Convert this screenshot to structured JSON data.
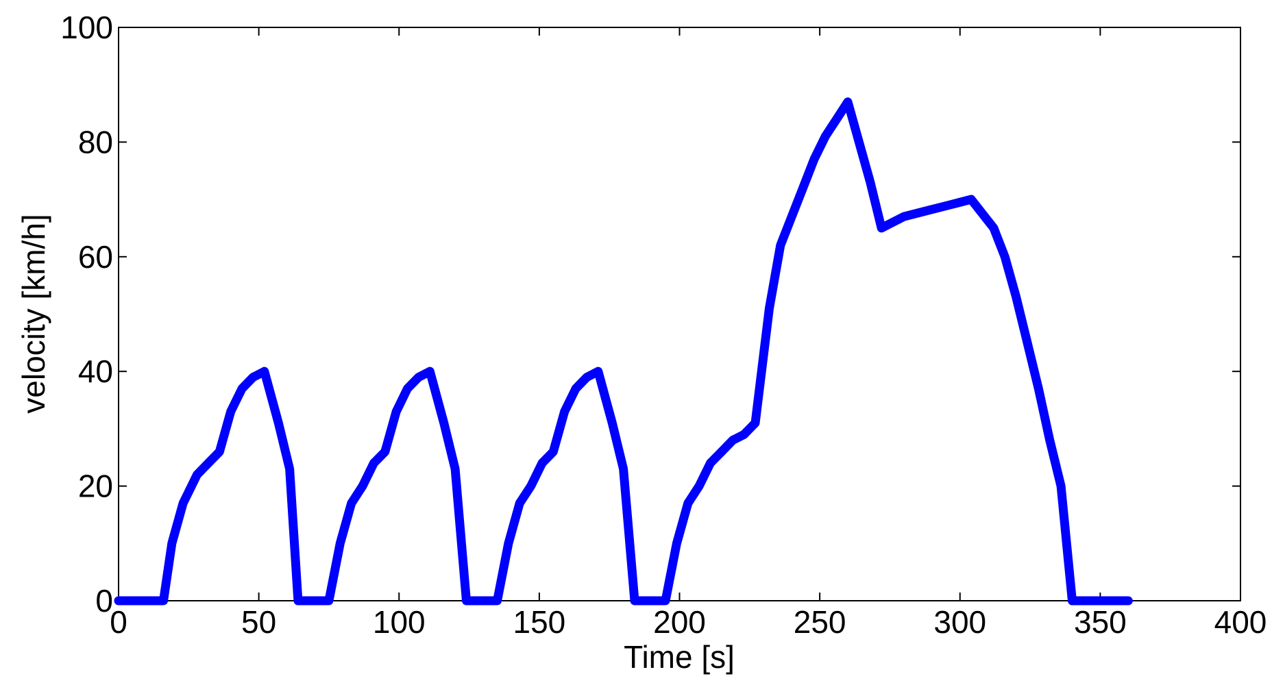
{
  "chart_data": {
    "type": "line",
    "title": "",
    "xlabel": "Time [s]",
    "ylabel": "velocity [km/h]",
    "xlim": [
      0,
      400
    ],
    "ylim": [
      0,
      100
    ],
    "xticks": [
      "0",
      "50",
      "100",
      "150",
      "200",
      "250",
      "300",
      "350",
      "400"
    ],
    "yticks": [
      "0",
      "20",
      "40",
      "60",
      "80",
      "100"
    ],
    "grid": false,
    "legend": "none",
    "series": [
      {
        "color": "#0000ff",
        "x": [
          0,
          16,
          19,
          23,
          28,
          32,
          36,
          40,
          44,
          48,
          52,
          57,
          61,
          64,
          75,
          79,
          83,
          87,
          91,
          95,
          99,
          103,
          107,
          111,
          116,
          120,
          124,
          135,
          139,
          143,
          147,
          151,
          155,
          159,
          163,
          167,
          171,
          176,
          180,
          184,
          195,
          199,
          203,
          207,
          211,
          215,
          219,
          223,
          227,
          232,
          236,
          240,
          244,
          248,
          252,
          256,
          260,
          264,
          268,
          272,
          276,
          280,
          288,
          296,
          304,
          312,
          316,
          320,
          324,
          328,
          332,
          336,
          340,
          344,
          360
        ],
        "y": [
          0,
          0,
          10,
          17,
          22,
          24,
          26,
          33,
          37,
          39,
          40,
          31,
          23,
          0,
          0,
          10,
          17,
          20,
          24,
          26,
          33,
          37,
          39,
          40,
          31,
          23,
          0,
          0,
          10,
          17,
          20,
          24,
          26,
          33,
          37,
          39,
          40,
          31,
          23,
          0,
          0,
          10,
          17,
          20,
          24,
          26,
          28,
          29,
          31,
          51,
          62,
          67,
          72,
          77,
          81,
          84,
          87,
          80,
          73,
          65,
          66,
          67,
          68,
          69,
          70,
          65,
          60,
          53,
          45,
          37,
          28,
          20,
          0,
          0,
          0
        ]
      }
    ]
  }
}
